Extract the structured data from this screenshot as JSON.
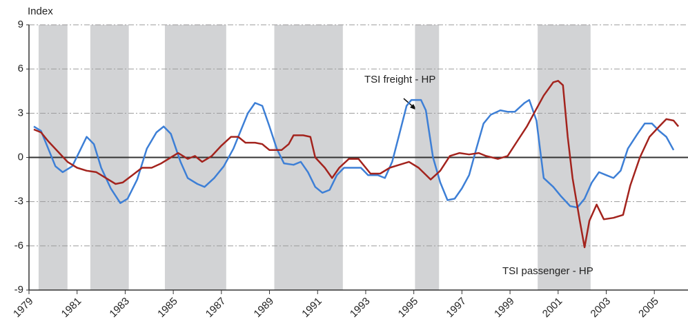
{
  "chart_data": {
    "type": "line",
    "y_label": "Index",
    "xlim": [
      1979,
      2006.4
    ],
    "xticks": [
      1979,
      1981,
      1983,
      1985,
      1987,
      1989,
      1991,
      1993,
      1995,
      1997,
      1999,
      2001,
      2003,
      2005
    ],
    "ylim": [
      -9,
      9
    ],
    "yticks": [
      -9,
      -6,
      -3,
      0,
      3,
      6,
      9
    ],
    "grid": true,
    "shade_color": "#d2d3d5",
    "shaded_periods": [
      [
        1979.4,
        1980.6
      ],
      [
        1981.55,
        1983.15
      ],
      [
        1984.65,
        1987.2
      ],
      [
        1989.2,
        1992.05
      ],
      [
        1995.05,
        1996.05
      ],
      [
        2000.15,
        2002.35
      ]
    ],
    "series": [
      {
        "name": "TSI freight - HP",
        "color": "#3d7fd6",
        "x": [
          1979.2,
          1979.5,
          1979.8,
          1980.1,
          1980.4,
          1980.8,
          1981.1,
          1981.4,
          1981.7,
          1982.0,
          1982.4,
          1982.8,
          1983.1,
          1983.5,
          1983.9,
          1984.3,
          1984.6,
          1984.9,
          1985.3,
          1985.6,
          1986.0,
          1986.3,
          1986.7,
          1987.1,
          1987.5,
          1987.8,
          1988.1,
          1988.4,
          1988.7,
          1989.0,
          1989.3,
          1989.6,
          1990.0,
          1990.3,
          1990.6,
          1990.9,
          1991.2,
          1991.5,
          1991.8,
          1992.1,
          1992.5,
          1992.8,
          1993.1,
          1993.5,
          1993.8,
          1994.1,
          1994.4,
          1994.7,
          1994.9,
          1995.3,
          1995.5,
          1995.8,
          1996.1,
          1996.4,
          1996.7,
          1997.0,
          1997.3,
          1997.6,
          1997.9,
          1998.2,
          1998.6,
          1998.9,
          1999.2,
          1999.6,
          1999.8,
          2000.1,
          2000.4,
          2000.8,
          2001.1,
          2001.5,
          2001.8,
          2002.1,
          2002.4,
          2002.7,
          2003.0,
          2003.3,
          2003.6,
          2003.9,
          2004.3,
          2004.6,
          2004.9,
          2005.2,
          2005.5,
          2005.8
        ],
        "values": [
          2.1,
          1.8,
          0.6,
          -0.6,
          -1.0,
          -0.6,
          0.4,
          1.4,
          0.9,
          -0.7,
          -2.1,
          -3.1,
          -2.8,
          -1.5,
          0.6,
          1.7,
          2.1,
          1.6,
          -0.3,
          -1.4,
          -1.8,
          -2.0,
          -1.4,
          -0.6,
          0.6,
          1.8,
          3.0,
          3.7,
          3.5,
          2.1,
          0.6,
          -0.4,
          -0.5,
          -0.3,
          -1.0,
          -2.0,
          -2.4,
          -2.2,
          -1.2,
          -0.7,
          -0.7,
          -0.7,
          -1.2,
          -1.2,
          -1.4,
          -0.3,
          1.6,
          3.5,
          3.9,
          3.9,
          3.2,
          0,
          -1.7,
          -2.9,
          -2.8,
          -2.1,
          -1.2,
          0.6,
          2.3,
          2.9,
          3.2,
          3.1,
          3.1,
          3.7,
          3.9,
          2.5,
          -1.4,
          -2.0,
          -2.6,
          -3.3,
          -3.4,
          -2.8,
          -1.7,
          -1.0,
          -1.2,
          -1.4,
          -0.9,
          0.6,
          1.6,
          2.3,
          2.3,
          1.8,
          1.4,
          0.5
        ]
      },
      {
        "name": "TSI passenger - HP",
        "color": "#a3231d",
        "x": [
          1979.2,
          1979.5,
          1979.8,
          1980.2,
          1980.6,
          1981.0,
          1981.4,
          1981.8,
          1982.2,
          1982.6,
          1982.9,
          1983.3,
          1983.7,
          1984.1,
          1984.5,
          1984.9,
          1985.2,
          1985.6,
          1985.9,
          1986.2,
          1986.6,
          1987.0,
          1987.4,
          1987.7,
          1988.0,
          1988.4,
          1988.7,
          1989.0,
          1989.5,
          1989.8,
          1990.0,
          1990.4,
          1990.7,
          1990.9,
          1991.3,
          1991.6,
          1991.9,
          1992.3,
          1992.7,
          1993.0,
          1993.2,
          1993.6,
          1994.0,
          1994.4,
          1994.8,
          1995.2,
          1995.7,
          1996.1,
          1996.5,
          1996.9,
          1997.3,
          1997.7,
          1998.0,
          1998.5,
          1998.9,
          1999.3,
          1999.7,
          2000.0,
          2000.4,
          2000.8,
          2001.0,
          2001.2,
          2001.4,
          2001.6,
          2001.9,
          2002.1,
          2002.3,
          2002.6,
          2002.9,
          2003.3,
          2003.7,
          2004.0,
          2004.4,
          2004.8,
          2005.2,
          2005.5,
          2005.8,
          2006.0
        ],
        "values": [
          1.9,
          1.7,
          1.1,
          0.4,
          -0.3,
          -0.7,
          -0.9,
          -1.0,
          -1.4,
          -1.8,
          -1.7,
          -1.2,
          -0.7,
          -0.7,
          -0.4,
          0,
          0.3,
          -0.1,
          0.1,
          -0.3,
          0.1,
          0.8,
          1.4,
          1.4,
          1.0,
          1.0,
          0.9,
          0.5,
          0.5,
          0.9,
          1.5,
          1.5,
          1.4,
          0,
          -0.7,
          -1.4,
          -0.7,
          -0.1,
          -0.1,
          -0.7,
          -1.1,
          -1.1,
          -0.7,
          -0.5,
          -0.3,
          -0.7,
          -1.5,
          -0.9,
          0.1,
          0.3,
          0.2,
          0.3,
          0.1,
          -0.1,
          0.1,
          1.1,
          2.1,
          3.0,
          4.2,
          5.1,
          5.2,
          4.9,
          1.4,
          -1.4,
          -4.3,
          -6.1,
          -4.3,
          -3.2,
          -4.2,
          -4.1,
          -3.9,
          -1.9,
          0,
          1.4,
          2.1,
          2.6,
          2.5,
          2.1
        ]
      }
    ]
  }
}
